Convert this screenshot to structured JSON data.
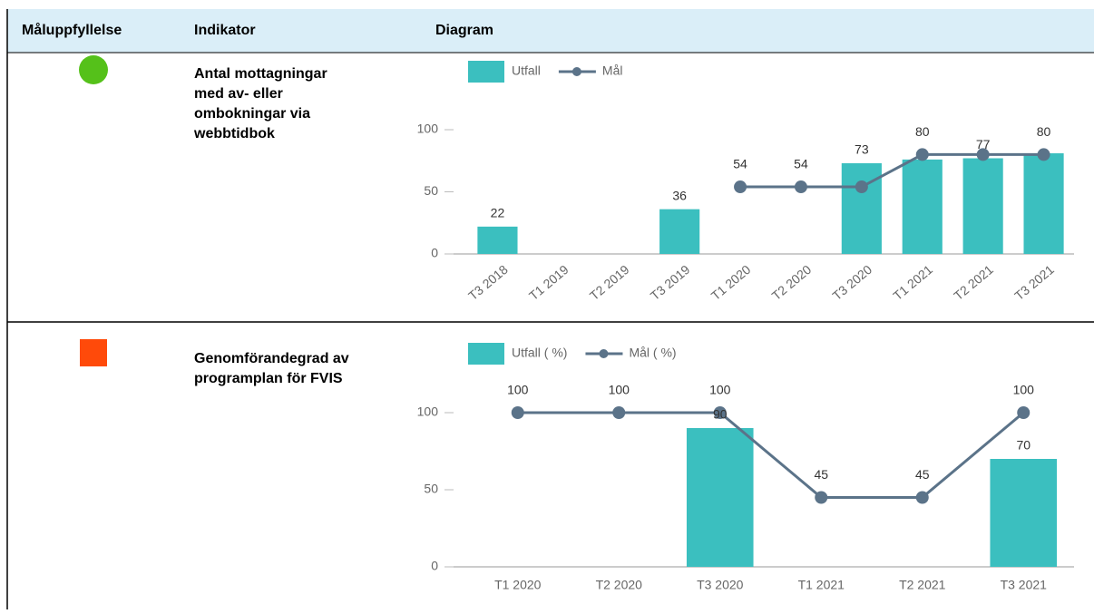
{
  "table": {
    "headers": [
      "Måluppfyllelse",
      "Indikator",
      "Diagram"
    ],
    "rows": [
      {
        "status": {
          "shape": "circle",
          "color": "#55c11a"
        },
        "indicator_lines": [
          "Antal mottagningar",
          "med av- eller",
          "ombokningar via",
          "webbtidbok"
        ],
        "chart_data": {
          "type": "bar_line",
          "rotated_labels": true,
          "categories": [
            "T3 2018",
            "T1 2019",
            "T2 2019",
            "T3 2019",
            "T1 2020",
            "T2 2020",
            "T3 2020",
            "T1 2021",
            "T2 2021",
            "T3 2021"
          ],
          "series": [
            {
              "name": "Utfall",
              "kind": "bar",
              "color": "#3bbfbf",
              "values": [
                22,
                null,
                null,
                36,
                null,
                null,
                73,
                76,
                77,
                81
              ],
              "value_labels": [
                "22",
                null,
                null,
                "36",
                null,
                null,
                "73",
                null,
                "77",
                null
              ]
            },
            {
              "name": "Mål",
              "kind": "line",
              "color": "#5b7389",
              "values": [
                null,
                null,
                null,
                null,
                54,
                54,
                54,
                80,
                80,
                80
              ],
              "value_labels": [
                null,
                null,
                null,
                null,
                "54",
                "54",
                null,
                "80",
                null,
                "80"
              ]
            }
          ],
          "ylim": [
            0,
            100
          ],
          "yticks": [
            0,
            50,
            100
          ]
        }
      },
      {
        "status": {
          "shape": "square",
          "color": "#ff4a0a"
        },
        "indicator_lines": [
          "Genomförandegrad av",
          "programplan för FVIS"
        ],
        "chart_data": {
          "type": "bar_line",
          "rotated_labels": false,
          "categories": [
            "T1 2020",
            "T2 2020",
            "T3 2020",
            "T1 2021",
            "T2 2021",
            "T3 2021"
          ],
          "series": [
            {
              "name": "Utfall ( %)",
              "kind": "bar",
              "color": "#3bbfbf",
              "values": [
                null,
                null,
                90,
                null,
                null,
                70
              ]
            },
            {
              "name": "Mål ( %)",
              "kind": "line",
              "color": "#5b7389",
              "values": [
                100,
                100,
                100,
                45,
                45,
                100
              ]
            }
          ],
          "ylim": [
            0,
            100
          ],
          "yticks": [
            0,
            50,
            100
          ]
        }
      }
    ]
  }
}
